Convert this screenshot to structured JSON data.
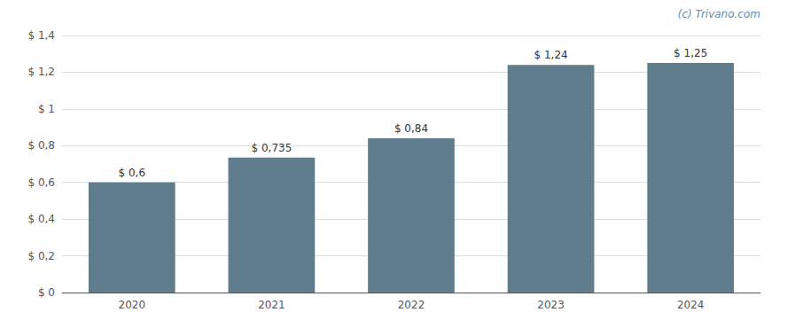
{
  "chart_data": {
    "type": "bar",
    "categories": [
      "2020",
      "2021",
      "2022",
      "2023",
      "2024"
    ],
    "values": [
      0.6,
      0.735,
      0.84,
      1.24,
      1.25
    ],
    "value_labels": [
      "$ 0,6",
      "$ 0,735",
      "$ 0,84",
      "$ 1,24",
      "$ 1,25"
    ],
    "data_labels": true,
    "color": "#5f7d8c",
    "ylim": [
      0,
      1.4
    ],
    "yticks": [
      {
        "value": 0,
        "label": "$ 0"
      },
      {
        "value": 0.2,
        "label": "$ 0,2"
      },
      {
        "value": 0.4,
        "label": "$ 0,4"
      },
      {
        "value": 0.6,
        "label": "$ 0,6"
      },
      {
        "value": 0.8,
        "label": "$ 0,8"
      },
      {
        "value": 1.0,
        "label": "$ 1"
      },
      {
        "value": 1.2,
        "label": "$ 1,2"
      },
      {
        "value": 1.4,
        "label": "$ 1,4"
      }
    ],
    "grid": true,
    "annotation": "(c) Trivano.com"
  }
}
